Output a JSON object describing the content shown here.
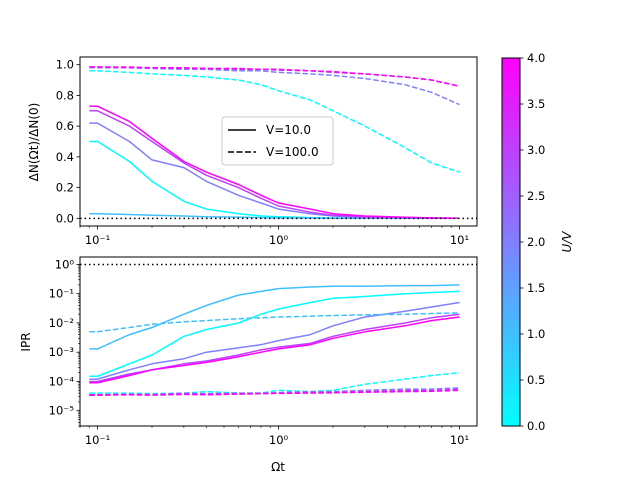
{
  "chart_data": [
    {
      "type": "line",
      "panel": "top",
      "xscale": "log",
      "ylabel": "ΔN(Ωt)/ΔN(0)",
      "xlim": [
        0.08,
        12.5
      ],
      "ylim": [
        -0.05,
        1.05
      ],
      "yticks": [
        "0.0",
        "0.2",
        "0.4",
        "0.6",
        "0.8",
        "1.0"
      ],
      "xticks": [
        "10⁻¹",
        "10⁰",
        "10¹"
      ],
      "reference_line": {
        "y": 0,
        "style": "dotted"
      },
      "legend": {
        "placement": "center",
        "entries": [
          {
            "label": "V=10.0",
            "style": "solid"
          },
          {
            "label": "V=100.0",
            "style": "dashed"
          }
        ]
      },
      "x": [
        0.09,
        0.1,
        0.15,
        0.2,
        0.3,
        0.4,
        0.6,
        0.8,
        1.0,
        1.5,
        2.0,
        3.0,
        5.0,
        7.0,
        10.0
      ],
      "series": [
        {
          "name": "U/V=0.0, V=10.0",
          "u": 0.0,
          "style": "solid",
          "values": [
            0.5,
            0.5,
            0.37,
            0.24,
            0.11,
            0.06,
            0.03,
            0.015,
            0.01,
            0.005,
            0.002,
            0.001,
            0.0,
            0.0,
            0.0
          ]
        },
        {
          "name": "U/V=1.0, V=10.0",
          "u": 1.0,
          "style": "solid",
          "values": [
            0.03,
            0.03,
            0.025,
            0.02,
            0.015,
            0.01,
            0.008,
            0.005,
            0.003,
            0.002,
            0.001,
            0.0,
            0.0,
            0.0,
            0.0
          ]
        },
        {
          "name": "U/V=2.0, V=10.0",
          "u": 2.0,
          "style": "solid",
          "values": [
            0.62,
            0.62,
            0.5,
            0.38,
            0.33,
            0.24,
            0.15,
            0.1,
            0.06,
            0.03,
            0.015,
            0.005,
            0.002,
            0.001,
            0.0
          ]
        },
        {
          "name": "U/V=3.0, V=10.0",
          "u": 3.0,
          "style": "solid",
          "values": [
            0.7,
            0.7,
            0.6,
            0.5,
            0.36,
            0.28,
            0.2,
            0.13,
            0.08,
            0.04,
            0.02,
            0.01,
            0.005,
            0.002,
            0.001
          ]
        },
        {
          "name": "U/V=4.0, V=10.0",
          "u": 4.0,
          "style": "solid",
          "values": [
            0.73,
            0.73,
            0.63,
            0.52,
            0.37,
            0.3,
            0.22,
            0.15,
            0.1,
            0.06,
            0.03,
            0.015,
            0.007,
            0.003,
            0.001
          ]
        },
        {
          "name": "U/V=0.0, V=100.0",
          "u": 0.0,
          "style": "dashed",
          "values": [
            0.96,
            0.96,
            0.95,
            0.94,
            0.93,
            0.92,
            0.9,
            0.87,
            0.83,
            0.77,
            0.7,
            0.6,
            0.46,
            0.36,
            0.3
          ]
        },
        {
          "name": "U/V=2.0, V=100.0",
          "u": 2.0,
          "style": "dashed",
          "values": [
            0.98,
            0.98,
            0.98,
            0.975,
            0.97,
            0.97,
            0.96,
            0.96,
            0.95,
            0.94,
            0.93,
            0.91,
            0.87,
            0.82,
            0.74
          ]
        },
        {
          "name": "U/V=3.0, V=100.0",
          "u": 3.0,
          "style": "dashed",
          "values": [
            0.985,
            0.985,
            0.98,
            0.98,
            0.975,
            0.975,
            0.97,
            0.97,
            0.965,
            0.96,
            0.95,
            0.94,
            0.92,
            0.9,
            0.86
          ]
        },
        {
          "name": "U/V=4.0, V=100.0",
          "u": 4.0,
          "style": "dashed",
          "values": [
            0.985,
            0.985,
            0.985,
            0.98,
            0.98,
            0.975,
            0.975,
            0.97,
            0.97,
            0.96,
            0.955,
            0.94,
            0.92,
            0.9,
            0.86
          ]
        }
      ]
    },
    {
      "type": "line",
      "panel": "bottom",
      "xscale": "log",
      "yscale": "log",
      "xlabel": "Ωt",
      "ylabel": "IPR",
      "xlim": [
        0.08,
        12.5
      ],
      "ylim": [
        3e-06,
        1.8
      ],
      "yticks": [
        "10⁻⁵",
        "10⁻⁴",
        "10⁻³",
        "10⁻²",
        "10⁻¹",
        "10⁰"
      ],
      "xticks": [
        "10⁻¹",
        "10⁰",
        "10¹"
      ],
      "reference_line": {
        "y": 1,
        "style": "dotted"
      },
      "x": [
        0.09,
        0.1,
        0.15,
        0.2,
        0.3,
        0.4,
        0.6,
        0.8,
        1.0,
        1.5,
        2.0,
        3.0,
        5.0,
        7.0,
        10.0
      ],
      "series": [
        {
          "name": "U/V=0.0, V=10.0",
          "u": 0.0,
          "style": "solid",
          "values": [
            0.00015,
            0.00015,
            0.0004,
            0.0008,
            0.0035,
            0.006,
            0.01,
            0.02,
            0.03,
            0.05,
            0.07,
            0.08,
            0.1,
            0.11,
            0.12
          ]
        },
        {
          "name": "U/V=1.0, V=10.0",
          "u": 1.0,
          "style": "solid",
          "values": [
            0.0013,
            0.0013,
            0.004,
            0.007,
            0.02,
            0.04,
            0.09,
            0.12,
            0.15,
            0.17,
            0.18,
            0.18,
            0.19,
            0.19,
            0.2
          ]
        },
        {
          "name": "U/V=2.0, V=10.0",
          "u": 2.0,
          "style": "solid",
          "values": [
            0.00012,
            0.00012,
            0.00025,
            0.0004,
            0.0006,
            0.001,
            0.0014,
            0.0018,
            0.0025,
            0.004,
            0.008,
            0.016,
            0.025,
            0.035,
            0.05
          ]
        },
        {
          "name": "U/V=3.0, V=10.0",
          "u": 3.0,
          "style": "solid",
          "values": [
            0.0001,
            0.0001,
            0.00018,
            0.00025,
            0.0004,
            0.0005,
            0.0008,
            0.0012,
            0.0015,
            0.002,
            0.0035,
            0.006,
            0.01,
            0.015,
            0.02
          ]
        },
        {
          "name": "U/V=4.0, V=10.0",
          "u": 4.0,
          "style": "solid",
          "values": [
            9e-05,
            9e-05,
            0.00016,
            0.00025,
            0.00035,
            0.00045,
            0.0007,
            0.001,
            0.0013,
            0.0018,
            0.003,
            0.005,
            0.008,
            0.012,
            0.016
          ]
        },
        {
          "name": "U/V=0.0, V=100.0",
          "u": 0.0,
          "style": "dashed",
          "values": [
            4e-05,
            4e-05,
            4e-05,
            3.8e-05,
            4e-05,
            4.5e-05,
            4e-05,
            4e-05,
            5e-05,
            4.5e-05,
            5e-05,
            8e-05,
            0.00012,
            0.00016,
            0.0002
          ]
        },
        {
          "name": "U/V=1.0, V=100.0",
          "u": 1.0,
          "style": "dashed",
          "values": [
            0.005,
            0.005,
            0.007,
            0.009,
            0.011,
            0.012,
            0.014,
            0.015,
            0.016,
            0.017,
            0.018,
            0.019,
            0.02,
            0.021,
            0.022
          ]
        },
        {
          "name": "U/V=2.0, V=100.0",
          "u": 2.0,
          "style": "dashed",
          "values": [
            3.5e-05,
            3.5e-05,
            3.7e-05,
            3.6e-05,
            4e-05,
            3.8e-05,
            4e-05,
            4e-05,
            4.2e-05,
            4.5e-05,
            4.5e-05,
            5e-05,
            5.5e-05,
            5.5e-05,
            6e-05
          ]
        },
        {
          "name": "U/V=3.0, V=100.0",
          "u": 3.0,
          "style": "dashed",
          "values": [
            3.5e-05,
            3.5e-05,
            3.6e-05,
            3.5e-05,
            3.8e-05,
            3.7e-05,
            3.8e-05,
            3.9e-05,
            4e-05,
            4.2e-05,
            4.3e-05,
            4.5e-05,
            5e-05,
            5e-05,
            5.5e-05
          ]
        },
        {
          "name": "U/V=4.0, V=100.0",
          "u": 4.0,
          "style": "dashed",
          "values": [
            3.4e-05,
            3.4e-05,
            3.5e-05,
            3.4e-05,
            3.6e-05,
            3.5e-05,
            3.7e-05,
            3.8e-05,
            3.9e-05,
            4e-05,
            4.1e-05,
            4.3e-05,
            4.5e-05,
            4.6e-05,
            5e-05
          ]
        }
      ]
    }
  ],
  "colorbar": {
    "label": "U/V",
    "range": [
      0,
      4
    ],
    "ticks": [
      "0.0",
      "0.5",
      "1.0",
      "1.5",
      "2.0",
      "2.5",
      "3.0",
      "3.5",
      "4.0"
    ],
    "colormap": "cool",
    "color_low": "#00ffff",
    "color_high": "#ff00ff"
  }
}
